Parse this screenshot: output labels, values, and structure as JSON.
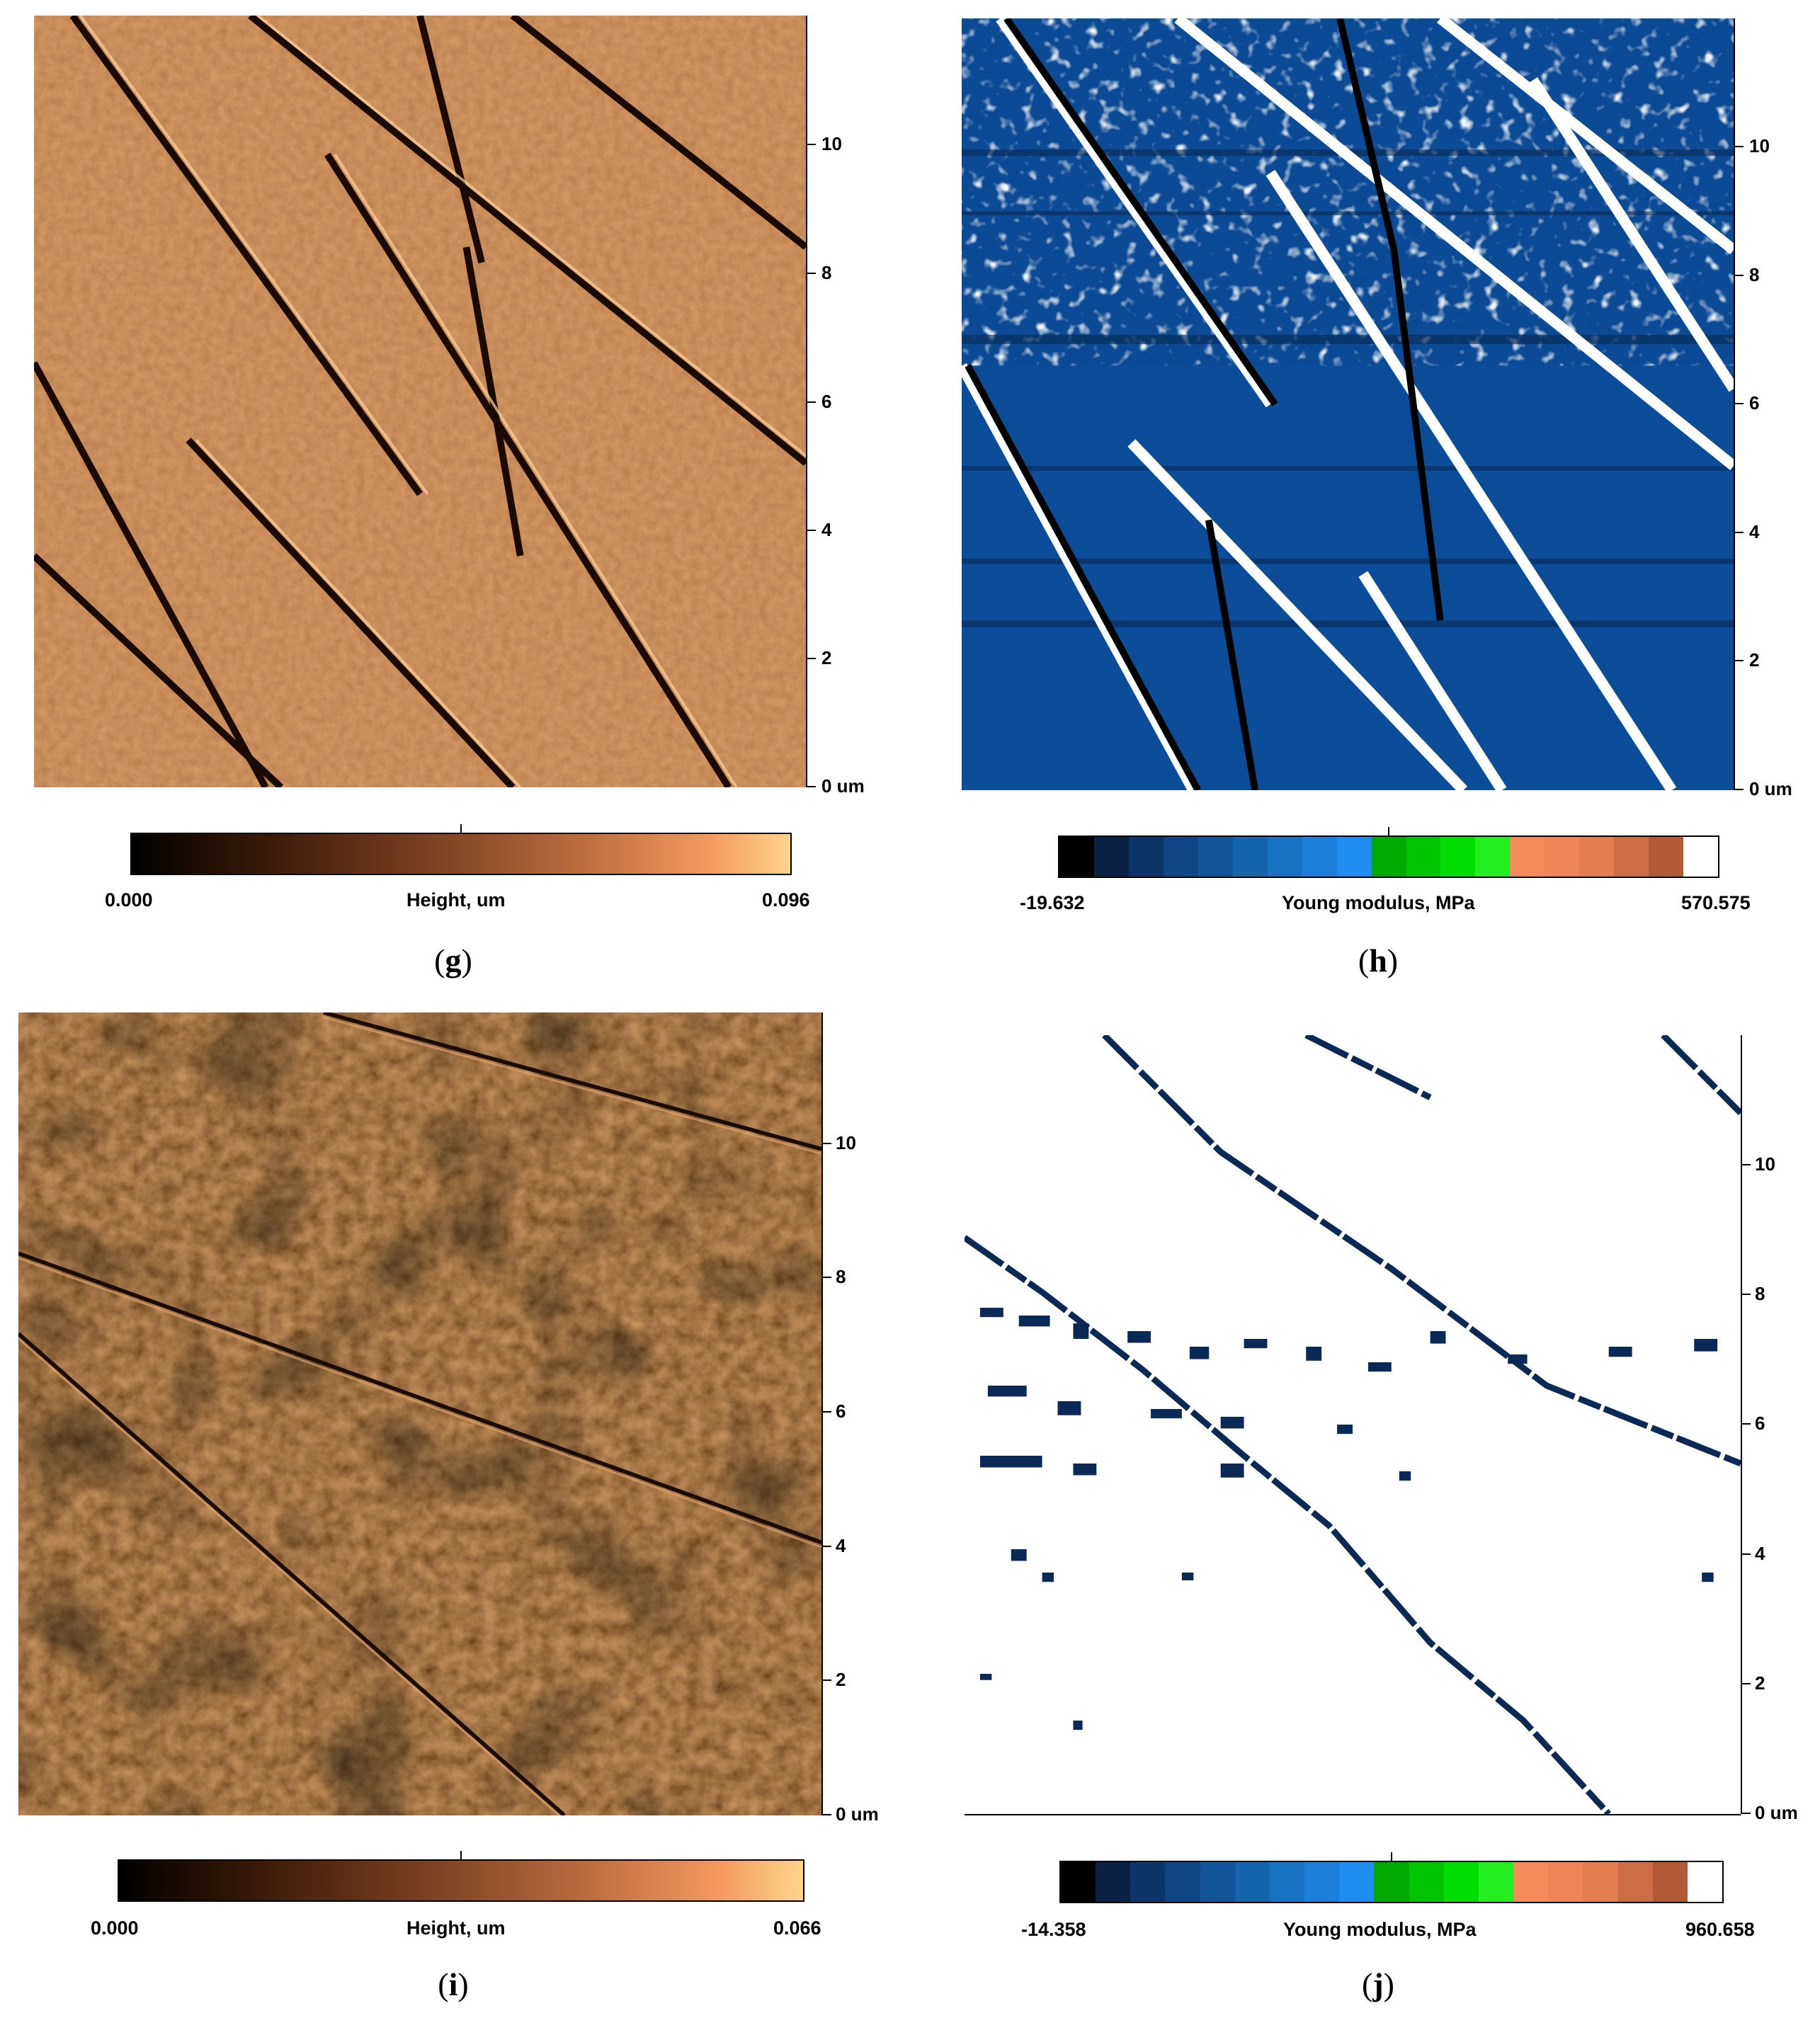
{
  "colors": {
    "copper_dark": "#000000",
    "copper_mid": "#8a4a22",
    "copper_light": "#ffcf8a",
    "blue_field": "#0b4a94",
    "blue_dark": "#0a2a55",
    "white": "#ffffff"
  },
  "panels": {
    "g": {
      "caption_letter": "g",
      "axis_unit_label": "0 um",
      "ticks": [
        "2",
        "4",
        "6",
        "8",
        "10"
      ],
      "colorbar": {
        "min": "0.000",
        "max": "0.096",
        "label": "Height, um",
        "type": "copper"
      }
    },
    "h": {
      "caption_letter": "h",
      "axis_unit_label": "0 um",
      "ticks": [
        "2",
        "4",
        "6",
        "8",
        "10"
      ],
      "colorbar": {
        "min": "-19.632",
        "max": "570.575",
        "label": "Young modulus, MPa",
        "type": "stepped"
      }
    },
    "i": {
      "caption_letter": "i",
      "axis_unit_label": "0 um",
      "ticks": [
        "2",
        "4",
        "6",
        "8",
        "10"
      ],
      "colorbar": {
        "min": "0.000",
        "max": "0.066",
        "label": "Height, um",
        "type": "copper"
      }
    },
    "j": {
      "caption_letter": "j",
      "axis_unit_label": "0 um",
      "ticks": [
        "2",
        "4",
        "6",
        "8",
        "10"
      ],
      "colorbar": {
        "min": "-14.358",
        "max": "960.658",
        "label": "Young modulus, MPa",
        "type": "stepped"
      }
    }
  },
  "stepped_palette": [
    "#000000",
    "#0a2244",
    "#0d3468",
    "#0f4585",
    "#125598",
    "#1565ad",
    "#1872c4",
    "#1c80db",
    "#1f8cf0",
    "#00aa00",
    "#00c400",
    "#00dd00",
    "#22ee22",
    "#f58a5a",
    "#ef8556",
    "#e37c4f",
    "#cc6d45",
    "#b25a36",
    "#ffffff"
  ]
}
